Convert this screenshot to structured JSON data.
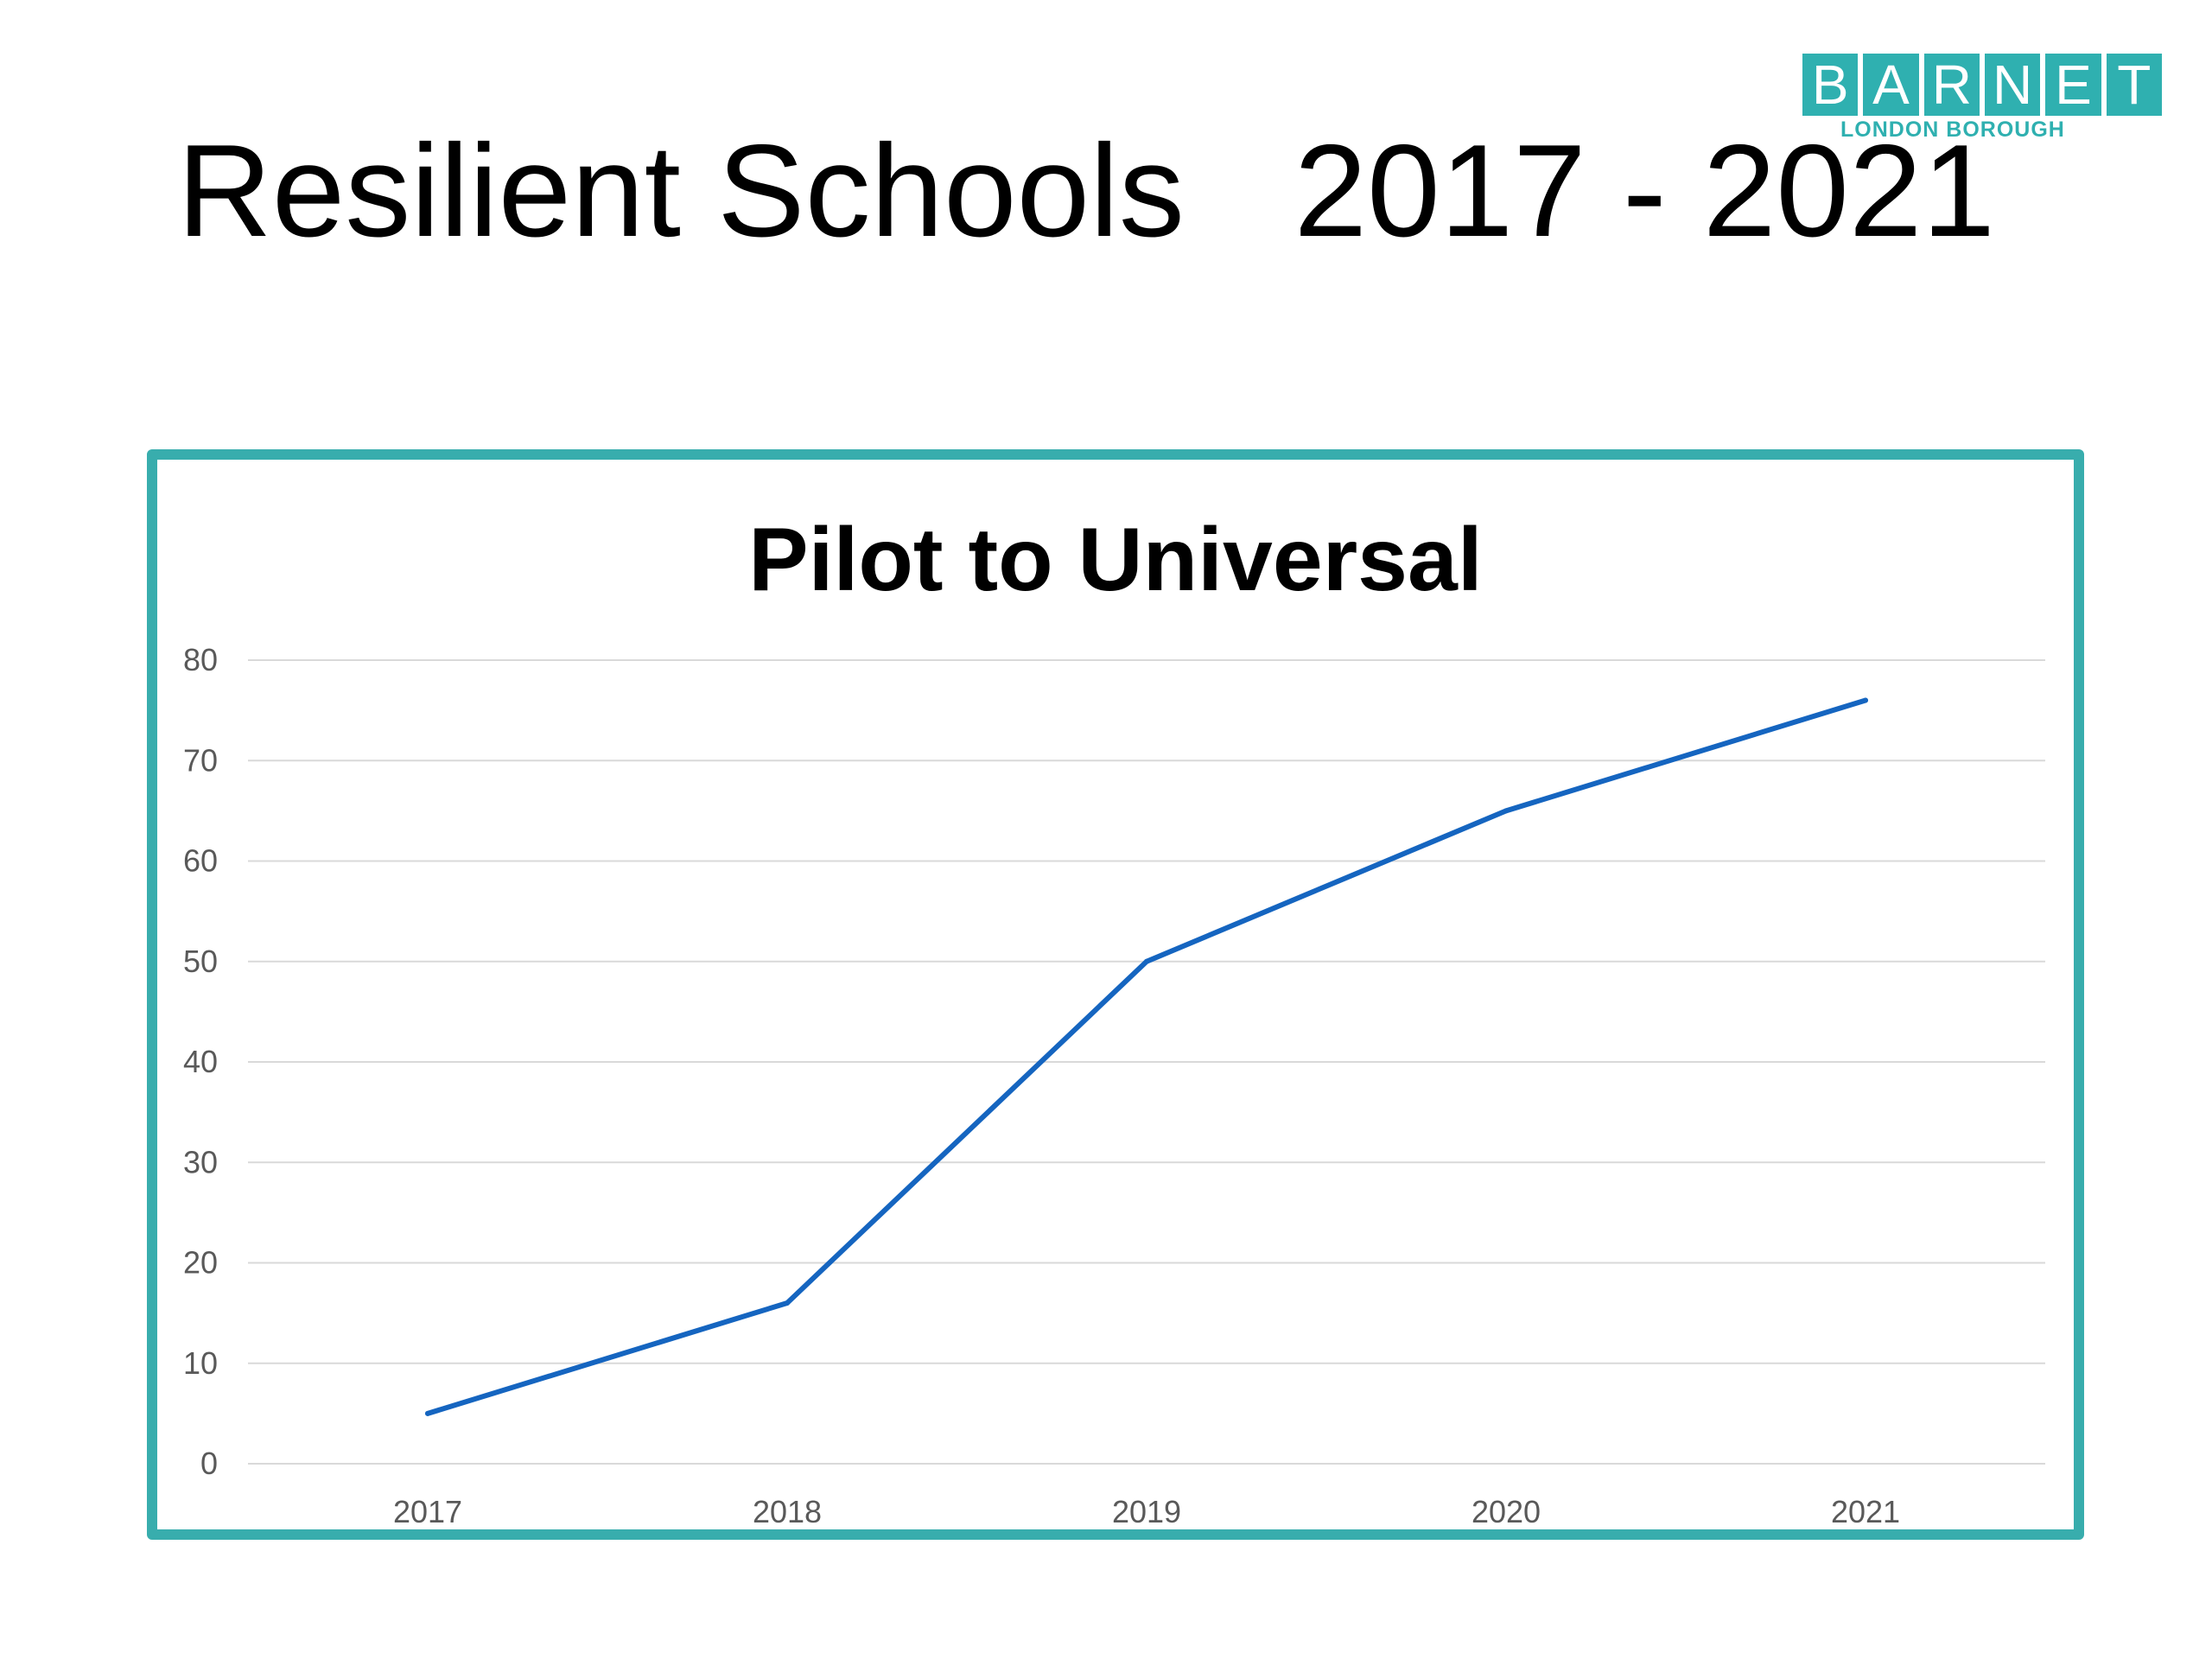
{
  "slide": {
    "title": "Resilient Schools   2017 - 2021"
  },
  "logo": {
    "letters": [
      "B",
      "A",
      "R",
      "N",
      "E",
      "T"
    ],
    "subtitle": "LONDON BOROUGH",
    "color": "#2fb0b0"
  },
  "frame": {
    "border_color": "#38adad"
  },
  "chart_data": {
    "type": "line",
    "title": "Pilot to Universal",
    "xlabel": "",
    "ylabel": "",
    "categories": [
      "2017",
      "2018",
      "2019",
      "2020",
      "2021"
    ],
    "series": [
      {
        "values": [
          5,
          16,
          50,
          65,
          76
        ],
        "color": "#1565c0"
      }
    ],
    "ylim": [
      0,
      80
    ],
    "yticks": [
      0,
      10,
      20,
      30,
      40,
      50,
      60,
      70,
      80
    ],
    "grid": true,
    "legend": "none"
  }
}
